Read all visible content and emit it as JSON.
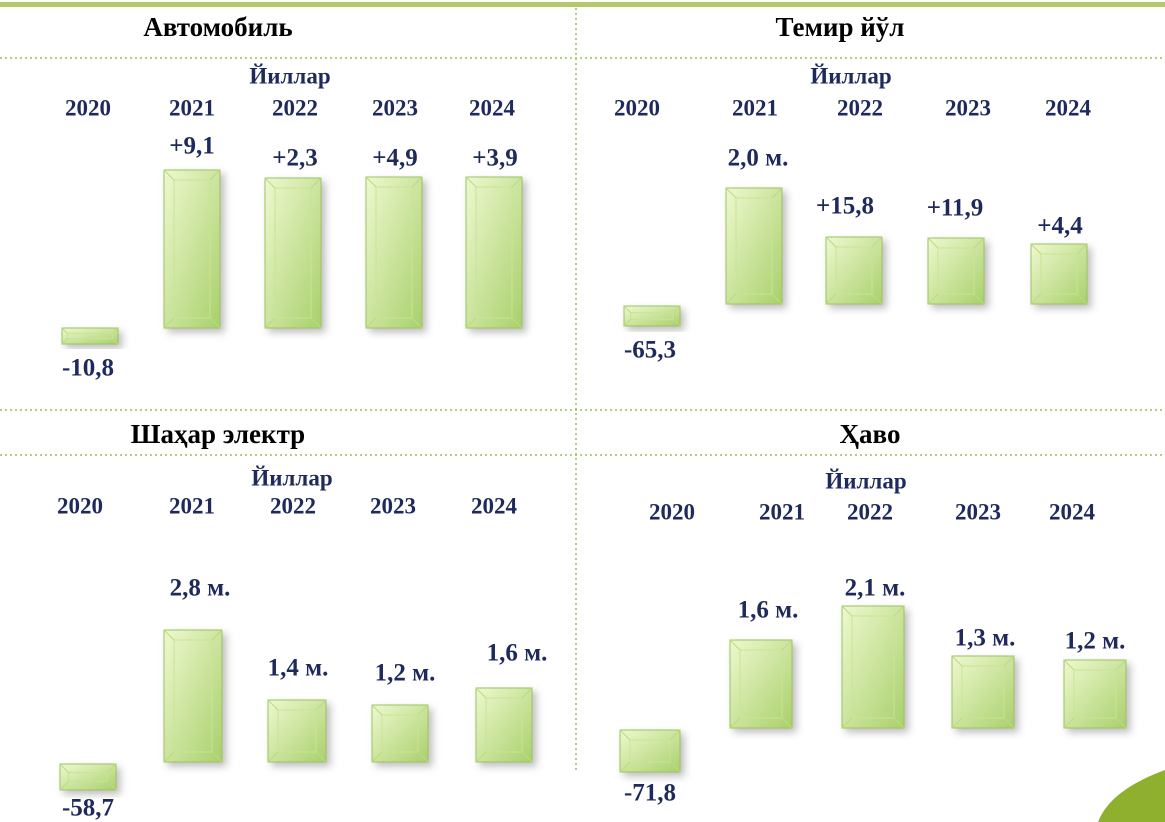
{
  "panels": [
    {
      "title": "Автомобиль",
      "axis_label": "Йиллар",
      "years": [
        "2020",
        "2021",
        "2022",
        "2023",
        "2024"
      ],
      "labels": [
        "-10,8",
        "+9,1",
        "+2,3",
        "+4,9",
        "+3,9"
      ]
    },
    {
      "title": "Темир йўл",
      "axis_label": "Йиллар",
      "years": [
        "2020",
        "2021",
        "2022",
        "2023",
        "2024"
      ],
      "labels": [
        "-65,3",
        "2,0 м.",
        "+15,8",
        "+11,9",
        "+4,4"
      ]
    },
    {
      "title": "Шаҳар электр",
      "axis_label": "Йиллар",
      "years": [
        "2020",
        "2021",
        "2022",
        "2023",
        "2024"
      ],
      "labels": [
        "-58,7",
        "2,8 м.",
        "1,4 м.",
        "1,2 м.",
        "1,6 м."
      ]
    },
    {
      "title": "Ҳаво",
      "axis_label": "Йиллар",
      "years": [
        "2020",
        "2021",
        "2022",
        "2023",
        "2024"
      ],
      "labels": [
        "-71,8",
        "1,6 м.",
        "2,1 м.",
        "1,3 м.",
        "1,2 м."
      ]
    }
  ]
}
